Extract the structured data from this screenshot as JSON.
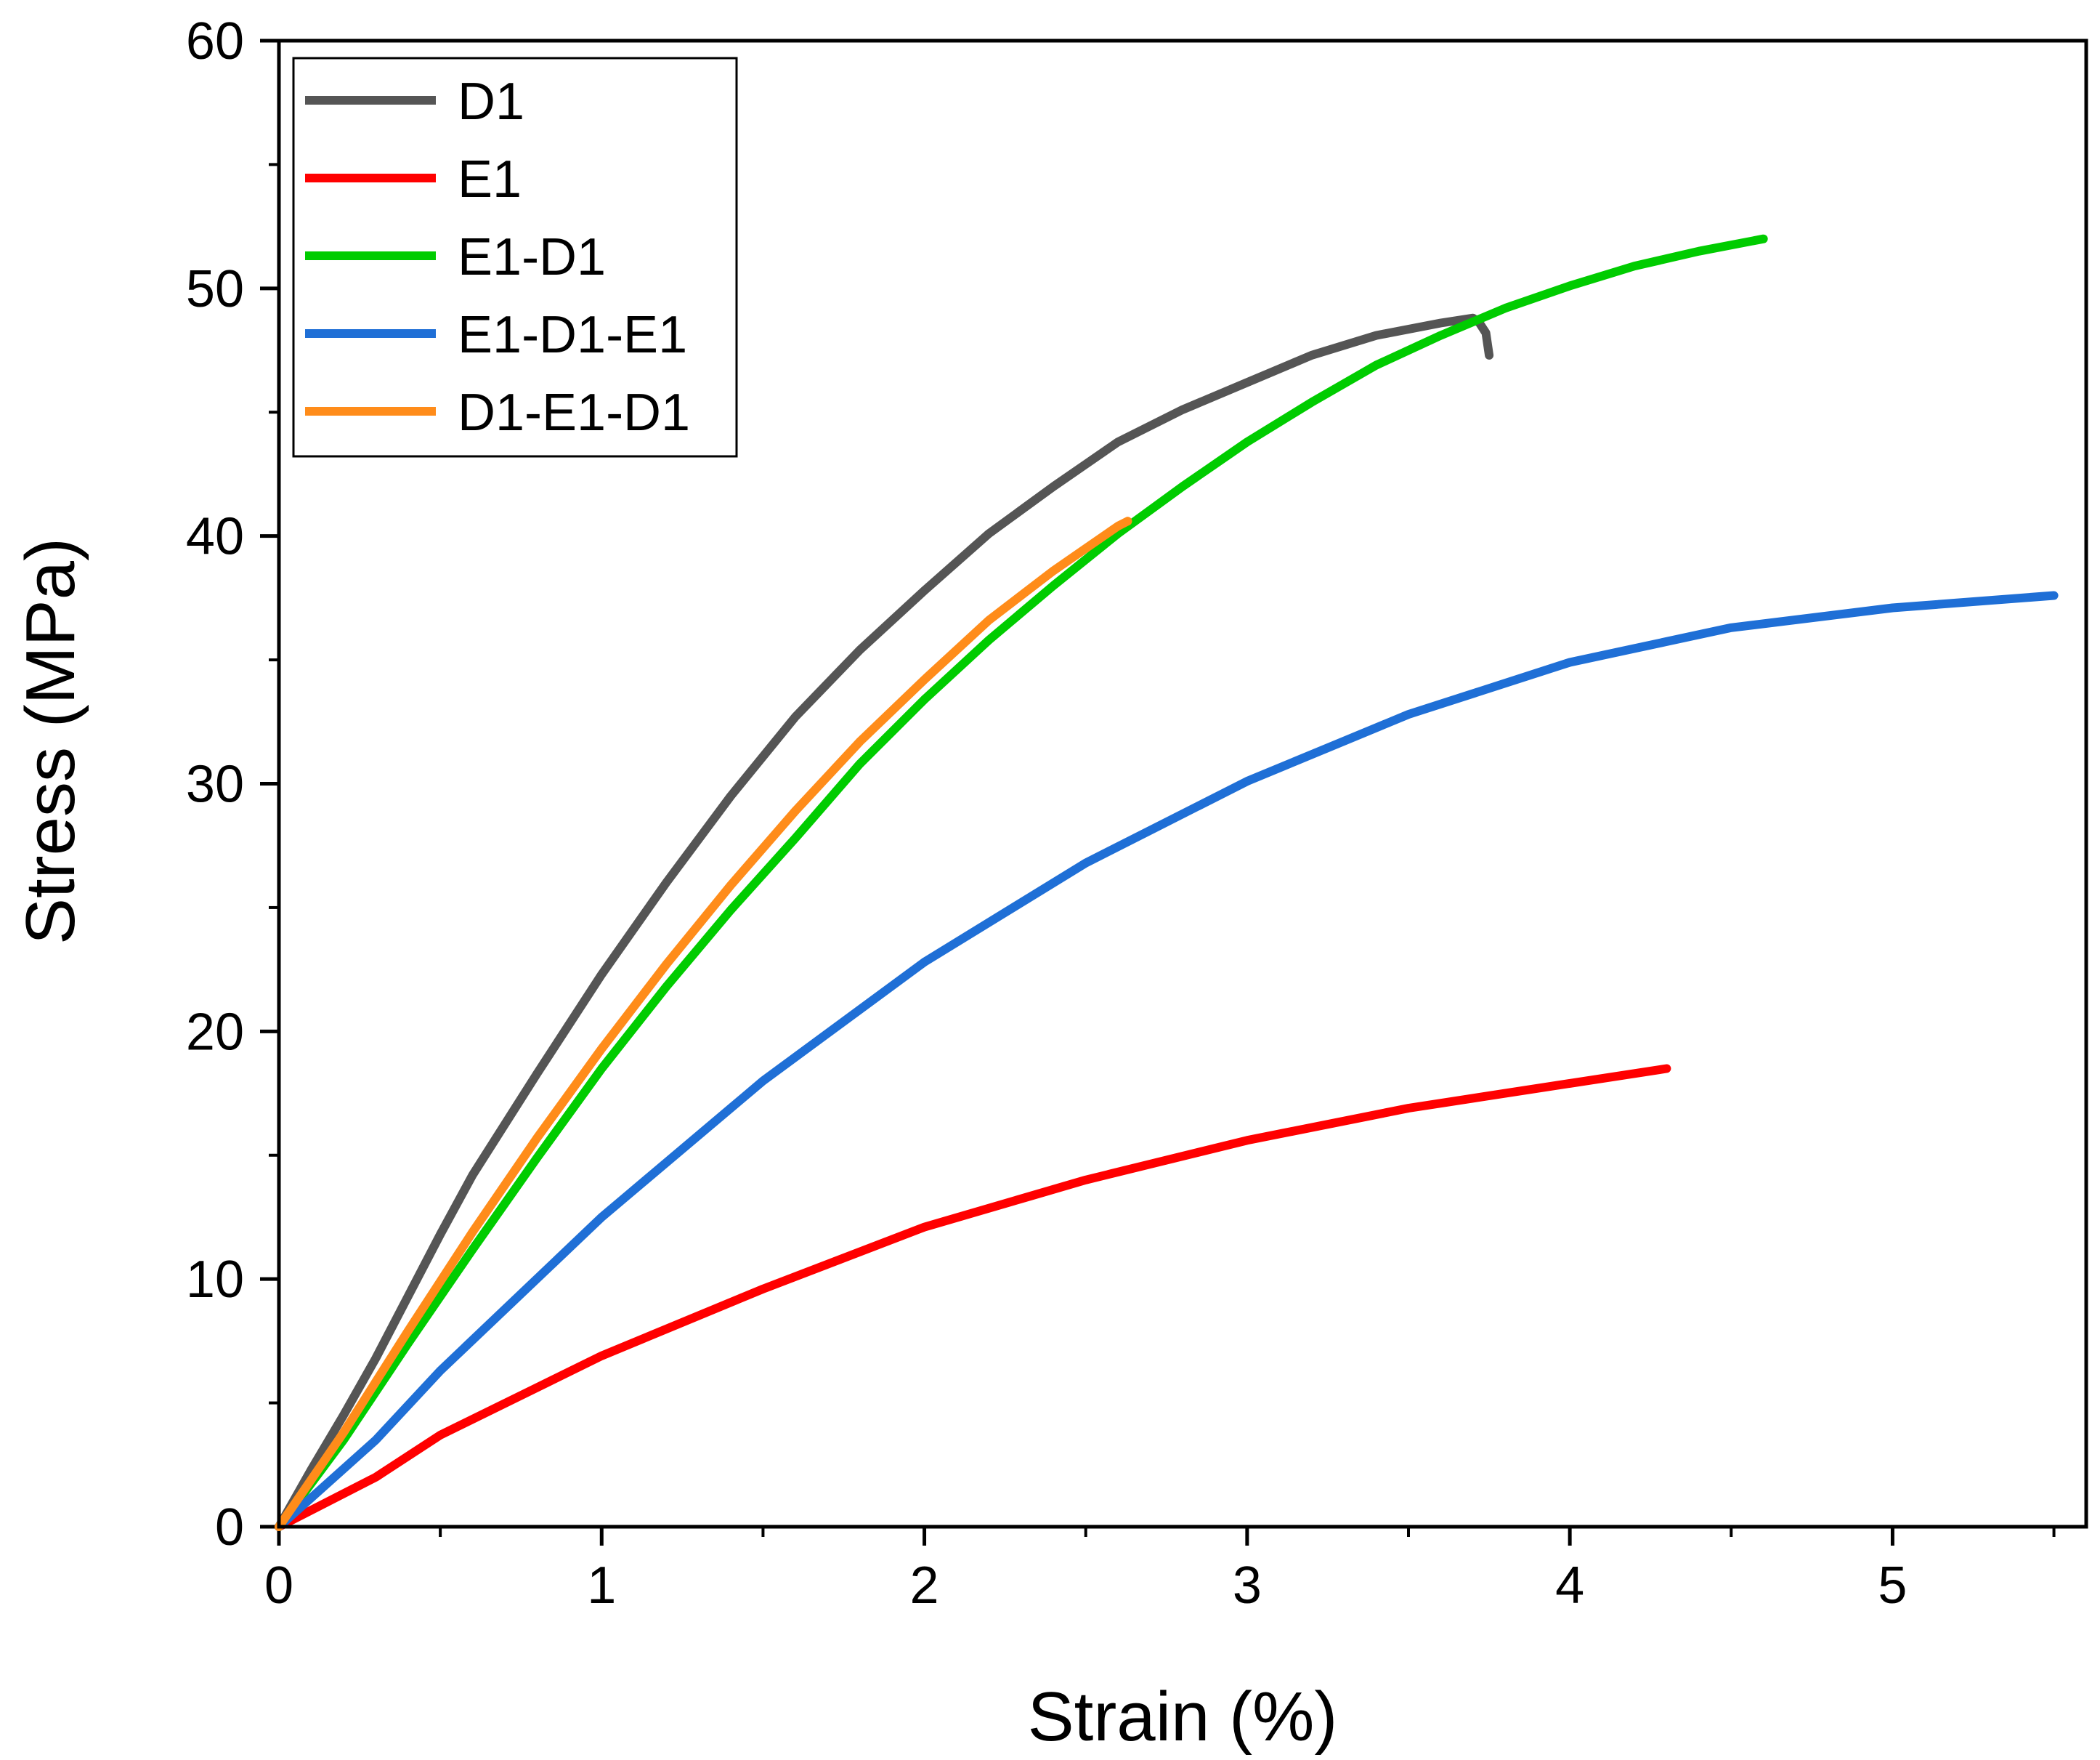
{
  "chart_data": {
    "type": "line",
    "xlabel": "Strain (%)",
    "ylabel": "Stress (MPa)",
    "xlim": [
      0,
      5.6
    ],
    "ylim": [
      0,
      60
    ],
    "x_ticks": [
      0,
      1,
      2,
      3,
      4,
      5
    ],
    "y_ticks": [
      0,
      10,
      20,
      30,
      40,
      50,
      60
    ],
    "x_tick_labels": [
      "0",
      "1",
      "2",
      "3",
      "4",
      "5"
    ],
    "y_tick_labels": [
      "0",
      "10",
      "20",
      "30",
      "40",
      "50",
      "60"
    ],
    "grid": false,
    "legend_position": "top-left",
    "series": [
      {
        "name": "D1",
        "color": "#555555",
        "points": [
          [
            0,
            0
          ],
          [
            0.1,
            2.3
          ],
          [
            0.2,
            4.5
          ],
          [
            0.3,
            6.8
          ],
          [
            0.4,
            9.3
          ],
          [
            0.5,
            11.8
          ],
          [
            0.6,
            14.2
          ],
          [
            0.8,
            18.3
          ],
          [
            1.0,
            22.3
          ],
          [
            1.2,
            26.0
          ],
          [
            1.4,
            29.5
          ],
          [
            1.6,
            32.7
          ],
          [
            1.8,
            35.4
          ],
          [
            2.0,
            37.8
          ],
          [
            2.2,
            40.1
          ],
          [
            2.4,
            42.0
          ],
          [
            2.6,
            43.8
          ],
          [
            2.8,
            45.1
          ],
          [
            3.0,
            46.2
          ],
          [
            3.2,
            47.3
          ],
          [
            3.4,
            48.1
          ],
          [
            3.6,
            48.6
          ],
          [
            3.7,
            48.8
          ],
          [
            3.72,
            48.6
          ],
          [
            3.74,
            48.2
          ],
          [
            3.75,
            47.3
          ]
        ]
      },
      {
        "name": "E1",
        "color": "#ff0000",
        "points": [
          [
            0,
            0
          ],
          [
            0.3,
            2.0
          ],
          [
            0.5,
            3.7
          ],
          [
            1.0,
            6.9
          ],
          [
            1.5,
            9.6
          ],
          [
            2.0,
            12.1
          ],
          [
            2.5,
            14.0
          ],
          [
            3.0,
            15.6
          ],
          [
            3.5,
            16.9
          ],
          [
            4.0,
            17.9
          ],
          [
            4.3,
            18.5
          ]
        ]
      },
      {
        "name": "E1-D1",
        "color": "#00cc00",
        "points": [
          [
            0,
            0
          ],
          [
            0.2,
            3.5
          ],
          [
            0.4,
            7.4
          ],
          [
            0.6,
            11.2
          ],
          [
            0.8,
            14.9
          ],
          [
            1.0,
            18.5
          ],
          [
            1.2,
            21.8
          ],
          [
            1.4,
            24.9
          ],
          [
            1.6,
            27.8
          ],
          [
            1.8,
            30.8
          ],
          [
            2.0,
            33.4
          ],
          [
            2.2,
            35.8
          ],
          [
            2.4,
            38.0
          ],
          [
            2.6,
            40.1
          ],
          [
            2.8,
            42.0
          ],
          [
            3.0,
            43.8
          ],
          [
            3.2,
            45.4
          ],
          [
            3.4,
            46.9
          ],
          [
            3.6,
            48.1
          ],
          [
            3.8,
            49.2
          ],
          [
            4.0,
            50.1
          ],
          [
            4.2,
            50.9
          ],
          [
            4.4,
            51.5
          ],
          [
            4.6,
            52.0
          ]
        ]
      },
      {
        "name": "E1-D1-E1",
        "color": "#1f6fd6",
        "points": [
          [
            0,
            0
          ],
          [
            0.3,
            3.5
          ],
          [
            0.5,
            6.3
          ],
          [
            1.0,
            12.5
          ],
          [
            1.5,
            18.0
          ],
          [
            2.0,
            22.8
          ],
          [
            2.5,
            26.8
          ],
          [
            3.0,
            30.1
          ],
          [
            3.5,
            32.8
          ],
          [
            4.0,
            34.9
          ],
          [
            4.5,
            36.3
          ],
          [
            5.0,
            37.1
          ],
          [
            5.5,
            37.6
          ]
        ]
      },
      {
        "name": "D1-E1-D1",
        "color": "#ff8c1a",
        "points": [
          [
            0,
            0
          ],
          [
            0.2,
            3.8
          ],
          [
            0.4,
            7.9
          ],
          [
            0.6,
            11.9
          ],
          [
            0.8,
            15.7
          ],
          [
            1.0,
            19.3
          ],
          [
            1.2,
            22.7
          ],
          [
            1.4,
            25.9
          ],
          [
            1.6,
            28.9
          ],
          [
            1.8,
            31.7
          ],
          [
            2.0,
            34.2
          ],
          [
            2.2,
            36.6
          ],
          [
            2.4,
            38.6
          ],
          [
            2.6,
            40.4
          ],
          [
            2.63,
            40.6
          ]
        ]
      }
    ]
  }
}
